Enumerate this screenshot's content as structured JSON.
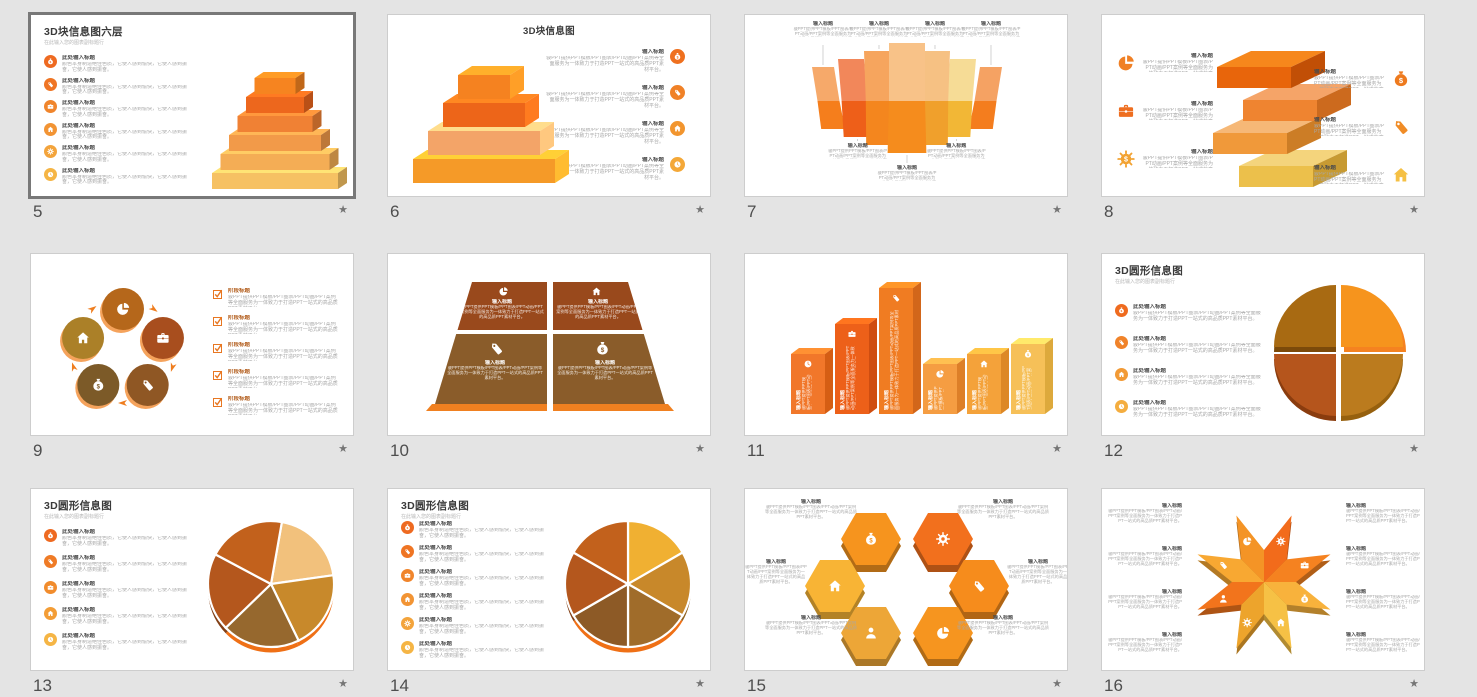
{
  "window": {
    "background": "#e4e4e4",
    "thumb_border": "#cdcdcd",
    "selected_border": "#787878"
  },
  "palette": {
    "accent_orange": "#f58220",
    "deep_orange": "#ed671d",
    "amber": "#f4ad55",
    "gold": "#f6c163",
    "brown": "#8a5c2a",
    "rust": "#b4571d"
  },
  "strings": {
    "item_heading_short": "输入标题",
    "item_heading_long": "此处输入标题",
    "item_heading_stage": "阶段标题",
    "body_service": "骏PPT提供PPT模板/PPT图表/PPT动画/PPT案例等全面服务为一体致力于打造PPT一站式的高品质PPT素材平台。",
    "body_feeling": "颜色本身制造绝佳色质，它使人感到愉快，它使人感到振奋，它使人感到振奋。",
    "subtitle": "在此输入您的图表副标题行",
    "star": "★"
  },
  "slides": [
    {
      "number": "5",
      "starred": true,
      "selected": true,
      "layout": "pyramid6",
      "title": "3D块信息图六层",
      "heading_key": "item_heading_long",
      "body_key": "body_feeling",
      "icons": [
        "money-bag",
        "tag",
        "briefcase",
        "home",
        "gear",
        "clock"
      ],
      "icon_colors": [
        "#ee6a21",
        "#ef7524",
        "#f0852c",
        "#f29434",
        "#f3a43c",
        "#f5b545"
      ],
      "layer_colors": [
        "#f68420",
        "#ed671d",
        "#f08134",
        "#f29a49",
        "#f4ad55",
        "#f6c163"
      ]
    },
    {
      "number": "6",
      "starred": true,
      "layout": "pyramid4",
      "title": "3D块信息图",
      "heading_key": "item_heading_short",
      "body_key": "body_service",
      "icons": [
        "money-bag",
        "tag",
        "home",
        "clock"
      ],
      "icon_colors": [
        "#ef701f",
        "#f08127",
        "#f2952e",
        "#f4a838"
      ],
      "layer_colors": [
        "#f58220",
        "#ed6519",
        "#f3a468",
        "#f59a28"
      ]
    },
    {
      "number": "7",
      "starred": true,
      "layout": "fan7",
      "heading_key": "item_heading_short",
      "body_key": "body_service",
      "bar_colors": [
        {
          "top": "#f6a96a",
          "bottom": "#f57e1c"
        },
        {
          "top": "#f2875a",
          "bottom": "#ee5f19"
        },
        {
          "top": "#f6a55e",
          "bottom": "#f4861e"
        },
        {
          "top": "#f8c288",
          "bottom": "#f58c1d"
        },
        {
          "top": "#f6c183",
          "bottom": "#f0a02c"
        },
        {
          "top": "#f6dc96",
          "bottom": "#f2b736"
        },
        {
          "top": "#f5a263",
          "bottom": "#f47d1e"
        }
      ]
    },
    {
      "number": "8",
      "starred": true,
      "layout": "slabs4",
      "heading_key": "item_heading_short",
      "body_key": "body_service",
      "icons_left": [
        "pie",
        "briefcase",
        "gear-dollar"
      ],
      "icons_right": [
        "money-bag",
        "tag",
        "home"
      ],
      "icon_colors_left": [
        "#f08025",
        "#ee6e20",
        "#f2a232"
      ],
      "icon_colors_right": [
        "#ee7a1e",
        "#f08c26",
        "#f5c044"
      ],
      "slab_front": [
        "#e8650b",
        "#ef8430",
        "#f0993a",
        "#ecc04b"
      ],
      "slab_side": [
        "#c14f06",
        "#cc6a1e",
        "#cc7d26",
        "#c79a32"
      ],
      "slab_top": [
        "#f6871c",
        "#f5a468",
        "#f6b877",
        "#f4d47c"
      ]
    },
    {
      "number": "9",
      "starred": true,
      "layout": "cycle5",
      "heading_key": "item_heading_stage",
      "body_key": "body_service",
      "icons": [
        "pie",
        "briefcase",
        "tag",
        "money-bag",
        "home"
      ],
      "circle_colors": [
        "#b5671b",
        "#a84e1e",
        "#8f5724",
        "#7c5a28",
        "#ab8028"
      ],
      "check_color": "#e87722",
      "rows": 5
    },
    {
      "number": "10",
      "starred": true,
      "layout": "trap4",
      "heading_key": "item_heading_short",
      "body_key": "body_service",
      "icons": [
        "pie",
        "home",
        "tag",
        "money-bag"
      ],
      "quad_colors": [
        "#99491c",
        "#99491c",
        "#8a5c2a",
        "#8a5c2a"
      ],
      "base_color": "#f08020"
    },
    {
      "number": "11",
      "starred": true,
      "layout": "bars6",
      "heading_key": "item_heading_short",
      "body_key": "body_service",
      "icons": [
        "clock",
        "briefcase",
        "tag",
        "pie",
        "home",
        "money-bag"
      ],
      "heights": [
        60,
        90,
        126,
        50,
        60,
        70
      ],
      "bar_front": [
        "#f1772a",
        "#ed6019",
        "#f07c22",
        "#f59d42",
        "#f4a23a",
        "#f6c058"
      ],
      "bar_side": [
        "#d55e14",
        "#cf4d10",
        "#d2661a",
        "#dd7f28",
        "#dd8826",
        "#dda93c"
      ]
    },
    {
      "number": "12",
      "starred": true,
      "layout": "circle4",
      "title": "3D圆形信息图",
      "heading_key": "item_heading_long",
      "body_key": "body_service",
      "icons": [
        "money-bag",
        "tag",
        "home",
        "clock"
      ],
      "icon_colors": [
        "#ef6b1f",
        "#f0832a",
        "#f29a35",
        "#f4ad3f"
      ],
      "quadrants": [
        "#a86a12",
        "#f6941d",
        "#b5551c",
        "#bb7b1e"
      ],
      "rims": [
        "#7c4a0a",
        "#f58220",
        "#8a3c0e",
        "#96600e"
      ]
    },
    {
      "number": "13",
      "starred": true,
      "layout": "circle5",
      "title": "3D圆形信息图",
      "heading_key": "item_heading_long",
      "body_key": "body_feeling",
      "icons": [
        "money-bag",
        "tag",
        "briefcase",
        "home",
        "clock"
      ],
      "icon_colors": [
        "#ee6a21",
        "#ef7b26",
        "#f18c2d",
        "#f39d36",
        "#f5b545"
      ],
      "slices": [
        "#f2c17c",
        "#c8892b",
        "#96682e",
        "#b4571d",
        "#c2611c"
      ]
    },
    {
      "number": "14",
      "starred": true,
      "layout": "circle6",
      "title": "3D圆形信息图",
      "heading_key": "item_heading_long",
      "body_key": "body_feeling",
      "icons": [
        "money-bag",
        "tag",
        "briefcase",
        "home",
        "gear",
        "clock"
      ],
      "icon_colors": [
        "#ee6a21",
        "#ef7524",
        "#f0852c",
        "#f29434",
        "#f3a43c",
        "#f5b545"
      ],
      "slices": [
        "#f0b032",
        "#c8882a",
        "#a06c2a",
        "#8d5a26",
        "#b4571d",
        "#c2611c"
      ]
    },
    {
      "number": "15",
      "starred": true,
      "layout": "hex6",
      "heading_key": "item_heading_short",
      "body_key": "body_service",
      "icons": [
        "money-bag",
        "gear",
        "home",
        "tag",
        "person",
        "pie"
      ],
      "hex_colors": [
        "#f6941e",
        "#f2701d",
        "#f8b435",
        "#f68c1c",
        "#eda637",
        "#f6951f"
      ]
    },
    {
      "number": "16",
      "starred": true,
      "layout": "star8",
      "heading_key": "item_heading_short",
      "body_key": "body_service",
      "icons": [
        "pie",
        "gear-dollar",
        "briefcase",
        "money-bag",
        "home",
        "gear",
        "person",
        "tag"
      ],
      "kite_colors": [
        "#f49426",
        "#f26b1b",
        "#f58220",
        "#f8b23c",
        "#f6c145",
        "#eda42c",
        "#f2741c",
        "#f8a832"
      ]
    }
  ]
}
